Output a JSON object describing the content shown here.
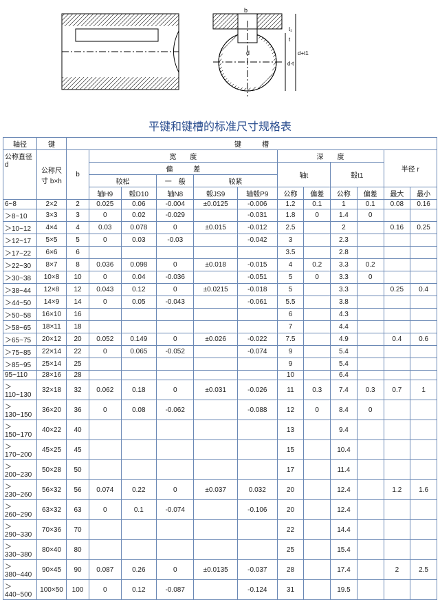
{
  "title": "平键和键槽的标准尺寸规格表",
  "colors": {
    "border": "#6a88b5",
    "title": "#2a4d8f",
    "bg": "#ffffff"
  },
  "headers": {
    "shaft_dia": "轴径",
    "key": "键",
    "slot": "键　　　槽",
    "nominal_dia": "公称直径 d",
    "nominal_size": "公称尺寸 b×h",
    "b": "b",
    "width": "宽　　度",
    "depth": "深　　度",
    "radius": "半径 r",
    "tolerance": "偏　　　差",
    "shaft_t": "轴t",
    "hub_t1": "毂t1",
    "loose": "较松",
    "normal": "一　般",
    "tight": "较紧",
    "shaftH9": "轴H9",
    "hubD10": "毂D10",
    "shaftN8": "轴N8",
    "hubJS9": "毂JS9",
    "shaftHubP9": "轴毂P9",
    "nominal": "公称",
    "dev": "偏差",
    "max": "最大",
    "min": "最小"
  },
  "rows": [
    {
      "d": "6~8",
      "bxh": "2×2",
      "b": "2",
      "h9a": "0.025",
      "d10a": "0.06",
      "n8a": "-0.004",
      "js9": "±0.0125",
      "p9a": "-0.006",
      "t": "1.2",
      "tdev": "0.1",
      "t1": "1",
      "t1dev": "0.1",
      "rmaxa": "0.08",
      "rmina": "0.16"
    },
    {
      "d": "＞8~10",
      "bxh": "3×3",
      "b": "3",
      "h9a": "0",
      "d10a": "0.02",
      "n8a": "-0.029",
      "js9": "",
      "p9a": "-0.031",
      "t": "1.8",
      "tdev": "0",
      "t1": "1.4",
      "t1dev": "0",
      "rmaxa": "",
      "rmina": ""
    },
    {
      "d": "＞10~12",
      "bxh": "4×4",
      "b": "4",
      "h9a": "0.03",
      "d10a": "0.078",
      "n8a": "0",
      "js9": "±0.015",
      "p9a": "-0.012",
      "t": "2.5",
      "tdev": "",
      "t1": "2",
      "t1dev": "",
      "rmaxa": "0.16",
      "rmina": "0.25"
    },
    {
      "d": "＞12~17",
      "bxh": "5×5",
      "b": "5",
      "h9a": "0",
      "d10a": "0.03",
      "n8a": "-0.03",
      "js9": "",
      "p9a": "-0.042",
      "t": "3",
      "tdev": "",
      "t1": "2.3",
      "t1dev": "",
      "rmaxa": "",
      "rmina": ""
    },
    {
      "d": "＞17~22",
      "bxh": "6×6",
      "b": "6",
      "h9a": "",
      "d10a": "",
      "n8a": "",
      "js9": "",
      "p9a": "",
      "t": "3.5",
      "tdev": "",
      "t1": "2.8",
      "t1dev": "",
      "rmaxa": "",
      "rmina": ""
    },
    {
      "d": "＞22~30",
      "bxh": "8×7",
      "b": "8",
      "h9a": "0.036",
      "d10a": "0.098",
      "n8a": "0",
      "js9": "±0.018",
      "p9a": "-0.015",
      "t": "4",
      "tdev": "0.2",
      "t1": "3.3",
      "t1dev": "0.2",
      "rmaxa": "",
      "rmina": ""
    },
    {
      "d": "＞30~38",
      "bxh": "10×8",
      "b": "10",
      "h9a": "0",
      "d10a": "0.04",
      "n8a": "-0.036",
      "js9": "",
      "p9a": "-0.051",
      "t": "5",
      "tdev": "0",
      "t1": "3.3",
      "t1dev": "0",
      "rmaxa": "",
      "rmina": ""
    },
    {
      "d": "＞38~44",
      "bxh": "12×8",
      "b": "12",
      "h9a": "0.043",
      "d10a": "0.12",
      "n8a": "0",
      "js9": "±0.0215",
      "p9a": "-0.018",
      "t": "5",
      "tdev": "",
      "t1": "3.3",
      "t1dev": "",
      "rmaxa": "0.25",
      "rmina": "0.4"
    },
    {
      "d": "＞44~50",
      "bxh": "14×9",
      "b": "14",
      "h9a": "0",
      "d10a": "0.05",
      "n8a": "-0.043",
      "js9": "",
      "p9a": "-0.061",
      "t": "5.5",
      "tdev": "",
      "t1": "3.8",
      "t1dev": "",
      "rmaxa": "",
      "rmina": ""
    },
    {
      "d": "＞50~58",
      "bxh": "16×10",
      "b": "16",
      "h9a": "",
      "d10a": "",
      "n8a": "",
      "js9": "",
      "p9a": "",
      "t": "6",
      "tdev": "",
      "t1": "4.3",
      "t1dev": "",
      "rmaxa": "",
      "rmina": ""
    },
    {
      "d": "＞58~65",
      "bxh": "18×11",
      "b": "18",
      "h9a": "",
      "d10a": "",
      "n8a": "",
      "js9": "",
      "p9a": "",
      "t": "7",
      "tdev": "",
      "t1": "4.4",
      "t1dev": "",
      "rmaxa": "",
      "rmina": ""
    },
    {
      "d": "＞65~75",
      "bxh": "20×12",
      "b": "20",
      "h9a": "0.052",
      "d10a": "0.149",
      "n8a": "0",
      "js9": "±0.026",
      "p9a": "-0.022",
      "t": "7.5",
      "tdev": "",
      "t1": "4.9",
      "t1dev": "",
      "rmaxa": "0.4",
      "rmina": "0.6"
    },
    {
      "d": "＞75~85",
      "bxh": "22×14",
      "b": "22",
      "h9a": "0",
      "d10a": "0.065",
      "n8a": "-0.052",
      "js9": "",
      "p9a": "-0.074",
      "t": "9",
      "tdev": "",
      "t1": "5.4",
      "t1dev": "",
      "rmaxa": "",
      "rmina": ""
    },
    {
      "d": "＞85~95",
      "bxh": "25×14",
      "b": "25",
      "h9a": "",
      "d10a": "",
      "n8a": "",
      "js9": "",
      "p9a": "",
      "t": "9",
      "tdev": "",
      "t1": "5.4",
      "t1dev": "",
      "rmaxa": "",
      "rmina": ""
    },
    {
      "d": "95~110",
      "bxh": "28×16",
      "b": "28",
      "h9a": "",
      "d10a": "",
      "n8a": "",
      "js9": "",
      "p9a": "",
      "t": "10",
      "tdev": "",
      "t1": "6.4",
      "t1dev": "",
      "rmaxa": "",
      "rmina": ""
    },
    {
      "d": "＞110~130",
      "bxh": "32×18",
      "b": "32",
      "h9a": "0.062",
      "d10a": "0.18",
      "n8a": "0",
      "js9": "±0.031",
      "p9a": "-0.026",
      "t": "11",
      "tdev": "0.3",
      "t1": "7.4",
      "t1dev": "0.3",
      "rmaxa": "0.7",
      "rmina": "1"
    },
    {
      "d": "＞130~150",
      "bxh": "36×20",
      "b": "36",
      "h9a": "0",
      "d10a": "0.08",
      "n8a": "-0.062",
      "js9": "",
      "p9a": "-0.088",
      "t": "12",
      "tdev": "0",
      "t1": "8.4",
      "t1dev": "0",
      "rmaxa": "",
      "rmina": ""
    },
    {
      "d": "＞150~170",
      "bxh": "40×22",
      "b": "40",
      "h9a": "",
      "d10a": "",
      "n8a": "",
      "js9": "",
      "p9a": "",
      "t": "13",
      "tdev": "",
      "t1": "9.4",
      "t1dev": "",
      "rmaxa": "",
      "rmina": ""
    },
    {
      "d": "＞170~200",
      "bxh": "45×25",
      "b": "45",
      "h9a": "",
      "d10a": "",
      "n8a": "",
      "js9": "",
      "p9a": "",
      "t": "15",
      "tdev": "",
      "t1": "10.4",
      "t1dev": "",
      "rmaxa": "",
      "rmina": ""
    },
    {
      "d": "＞200~230",
      "bxh": "50×28",
      "b": "50",
      "h9a": "",
      "d10a": "",
      "n8a": "",
      "js9": "",
      "p9a": "",
      "t": "17",
      "tdev": "",
      "t1": "11.4",
      "t1dev": "",
      "rmaxa": "",
      "rmina": ""
    },
    {
      "d": "＞230~260",
      "bxh": "56×32",
      "b": "56",
      "h9a": "0.074",
      "d10a": "0.22",
      "n8a": "0",
      "js9": "±0.037",
      "p9a": "0.032",
      "t": "20",
      "tdev": "",
      "t1": "12.4",
      "t1dev": "",
      "rmaxa": "1.2",
      "rmina": "1.6"
    },
    {
      "d": "＞260~290",
      "bxh": "63×32",
      "b": "63",
      "h9a": "0",
      "d10a": "0.1",
      "n8a": "-0.074",
      "js9": "",
      "p9a": "-0.106",
      "t": "20",
      "tdev": "",
      "t1": "12.4",
      "t1dev": "",
      "rmaxa": "",
      "rmina": ""
    },
    {
      "d": "＞290~330",
      "bxh": "70×36",
      "b": "70",
      "h9a": "",
      "d10a": "",
      "n8a": "",
      "js9": "",
      "p9a": "",
      "t": "22",
      "tdev": "",
      "t1": "14.4",
      "t1dev": "",
      "rmaxa": "",
      "rmina": ""
    },
    {
      "d": "＞330~380",
      "bxh": "80×40",
      "b": "80",
      "h9a": "",
      "d10a": "",
      "n8a": "",
      "js9": "",
      "p9a": "",
      "t": "25",
      "tdev": "",
      "t1": "15.4",
      "t1dev": "",
      "rmaxa": "",
      "rmina": ""
    },
    {
      "d": "＞380~440",
      "bxh": "90×45",
      "b": "90",
      "h9a": "0.087",
      "d10a": "0.26",
      "n8a": "0",
      "js9": "±0.0135",
      "p9a": "-0.037",
      "t": "28",
      "tdev": "",
      "t1": "17.4",
      "t1dev": "",
      "rmaxa": "2",
      "rmina": "2.5"
    },
    {
      "d": "＞440~500",
      "bxh": "100×50",
      "b": "100",
      "h9a": "0",
      "d10a": "0.12",
      "n8a": "-0.087",
      "js9": "",
      "p9a": "-0.124",
      "t": "31",
      "tdev": "",
      "t1": "19.5",
      "t1dev": "",
      "rmaxa": "",
      "rmina": ""
    }
  ]
}
